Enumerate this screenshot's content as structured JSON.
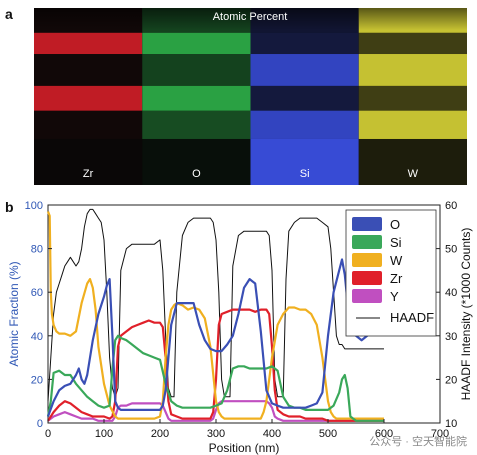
{
  "panel_a_label": "a",
  "panel_b_label": "b",
  "maps": {
    "title": "Atomic Percent",
    "panels": [
      {
        "element": "Zr",
        "color": "#e0202a"
      },
      {
        "element": "O",
        "color": "#2fb34a"
      },
      {
        "element": "Si",
        "color": "#3a4fe0"
      },
      {
        "element": "W",
        "color": "#e6e23a"
      }
    ]
  },
  "watermark": "公众号 · 空天智能院",
  "chart_data": {
    "type": "line",
    "xlabel": "Position (nm)",
    "ylabel": "Atomic Fraction (%)",
    "y2label": "HAADF Intensity (*1000 Counts)",
    "xlim": [
      0,
      700
    ],
    "ylim": [
      0,
      100
    ],
    "y2lim": [
      10,
      60
    ],
    "x_ticks": [
      0,
      100,
      200,
      300,
      400,
      500,
      600,
      700
    ],
    "y_ticks": [
      0,
      20,
      40,
      60,
      80,
      100
    ],
    "y2_ticks": [
      10,
      20,
      30,
      40,
      50,
      60
    ],
    "legend_position": "top-right",
    "colors": {
      "O": "#3a4fb5",
      "Si": "#3aa85a",
      "W": "#f0b020",
      "Zr": "#e0202a",
      "Y": "#c04fc0",
      "HAADF": "#111111"
    },
    "series": [
      {
        "name": "O",
        "axis": "left",
        "x": [
          0,
          10,
          20,
          30,
          40,
          50,
          55,
          60,
          65,
          70,
          80,
          90,
          100,
          105,
          110,
          115,
          120,
          125,
          130,
          140,
          150,
          160,
          170,
          180,
          190,
          200,
          205,
          210,
          215,
          220,
          225,
          230,
          240,
          250,
          260,
          270,
          280,
          290,
          300,
          310,
          320,
          330,
          340,
          350,
          360,
          370,
          380,
          390,
          400,
          410,
          420,
          430,
          440,
          450,
          460,
          470,
          480,
          490,
          500,
          510,
          520,
          525,
          530,
          535,
          540,
          550,
          560,
          570,
          580,
          600
        ],
        "y": [
          3,
          10,
          15,
          17,
          18,
          22,
          25,
          20,
          18,
          22,
          38,
          50,
          58,
          63,
          66,
          40,
          10,
          7,
          6,
          6,
          6,
          6,
          6,
          6,
          6,
          6,
          8,
          15,
          30,
          45,
          50,
          55,
          55,
          55,
          55,
          45,
          38,
          34,
          33,
          33,
          36,
          40,
          50,
          62,
          66,
          64,
          42,
          15,
          9,
          8,
          7,
          7,
          7,
          7,
          7,
          8,
          9,
          14,
          40,
          60,
          70,
          75,
          68,
          55,
          45,
          40,
          38,
          40,
          48,
          60
        ]
      },
      {
        "name": "Si",
        "axis": "left",
        "x": [
          0,
          5,
          10,
          20,
          30,
          40,
          50,
          60,
          70,
          80,
          90,
          100,
          110,
          115,
          120,
          125,
          130,
          140,
          150,
          160,
          170,
          180,
          190,
          200,
          210,
          220,
          230,
          240,
          250,
          260,
          270,
          280,
          290,
          300,
          310,
          320,
          330,
          340,
          350,
          360,
          370,
          380,
          390,
          400,
          410,
          420,
          430,
          440,
          450,
          460,
          470,
          480,
          490,
          500,
          510,
          520,
          525,
          530,
          535,
          540,
          550,
          560,
          570,
          580,
          600
        ],
        "y": [
          3,
          10,
          23,
          24,
          22,
          22,
          18,
          15,
          12,
          10,
          8,
          7,
          8,
          25,
          38,
          40,
          39,
          38,
          36,
          34,
          32,
          31,
          30,
          29,
          18,
          10,
          8,
          7,
          7,
          7,
          7,
          7,
          7,
          8,
          9,
          15,
          25,
          26,
          26,
          25,
          25,
          25,
          25,
          26,
          24,
          12,
          8,
          7,
          7,
          6,
          6,
          6,
          6,
          6,
          8,
          14,
          20,
          22,
          16,
          3,
          1,
          1,
          1,
          1,
          1
        ]
      },
      {
        "name": "W",
        "axis": "left",
        "x": [
          0,
          3,
          5,
          7,
          10,
          15,
          20,
          30,
          40,
          50,
          60,
          70,
          75,
          80,
          85,
          90,
          100,
          110,
          120,
          125,
          130,
          140,
          150,
          160,
          170,
          180,
          190,
          200,
          205,
          210,
          215,
          220,
          225,
          230,
          240,
          250,
          260,
          270,
          280,
          290,
          300,
          305,
          310,
          315,
          320,
          330,
          340,
          350,
          360,
          370,
          380,
          385,
          390,
          400,
          410,
          420,
          430,
          440,
          450,
          460,
          470,
          480,
          490,
          500,
          505,
          510,
          515,
          520,
          525,
          530,
          540,
          550,
          560,
          570,
          580,
          590,
          600
        ],
        "y": [
          97,
          95,
          60,
          50,
          45,
          42,
          41,
          41,
          40,
          42,
          55,
          64,
          66,
          62,
          52,
          35,
          18,
          8,
          3,
          2,
          2,
          2,
          2,
          2,
          2,
          2,
          2,
          3,
          10,
          30,
          45,
          52,
          54,
          55,
          54,
          52,
          53,
          52,
          48,
          35,
          10,
          5,
          3,
          2,
          2,
          2,
          2,
          2,
          2,
          2,
          2,
          5,
          10,
          30,
          45,
          50,
          53,
          53,
          52,
          52,
          50,
          45,
          30,
          10,
          5,
          3,
          2,
          2,
          2,
          2,
          2,
          2,
          2,
          2,
          2,
          2,
          2
        ]
      },
      {
        "name": "Zr",
        "axis": "left",
        "x": [
          0,
          10,
          20,
          30,
          40,
          50,
          60,
          70,
          80,
          90,
          100,
          110,
          115,
          120,
          125,
          130,
          140,
          150,
          160,
          170,
          180,
          190,
          200,
          205,
          210,
          215,
          220,
          230,
          240,
          250,
          260,
          270,
          280,
          290,
          295,
          300,
          305,
          310,
          320,
          330,
          340,
          350,
          360,
          370,
          380,
          390,
          395,
          400,
          405,
          410,
          420,
          430,
          440,
          450,
          460,
          470,
          480,
          490,
          500,
          510,
          520,
          530,
          540,
          550,
          600
        ],
        "y": [
          1,
          5,
          8,
          10,
          9,
          7,
          5,
          4,
          3,
          3,
          3,
          2,
          3,
          10,
          35,
          40,
          42,
          44,
          45,
          46,
          47,
          46,
          46,
          44,
          30,
          10,
          4,
          3,
          2,
          2,
          2,
          2,
          2,
          2,
          5,
          20,
          45,
          50,
          51,
          52,
          52,
          52,
          52,
          51,
          52,
          52,
          50,
          35,
          15,
          6,
          4,
          3,
          3,
          3,
          2,
          2,
          2,
          2,
          1,
          1,
          1,
          1,
          1,
          1,
          1
        ]
      },
      {
        "name": "Y",
        "axis": "left",
        "x": [
          0,
          10,
          20,
          30,
          40,
          50,
          60,
          70,
          80,
          90,
          100,
          110,
          115,
          120,
          125,
          130,
          140,
          150,
          160,
          170,
          180,
          190,
          200,
          205,
          210,
          215,
          220,
          230,
          240,
          250,
          260,
          270,
          280,
          290,
          295,
          300,
          305,
          310,
          320,
          330,
          340,
          350,
          360,
          370,
          380,
          390,
          395,
          400,
          405,
          410,
          420,
          430,
          440,
          450,
          460,
          470,
          480,
          490,
          500,
          510,
          520,
          530,
          540,
          550,
          600
        ],
        "y": [
          1,
          3,
          4,
          5,
          4,
          3,
          2,
          2,
          2,
          1,
          1,
          1,
          1,
          3,
          7,
          8,
          8,
          9,
          9,
          9,
          9,
          9,
          9,
          8,
          5,
          2,
          1,
          1,
          1,
          1,
          1,
          1,
          1,
          1,
          2,
          6,
          9,
          10,
          10,
          10,
          10,
          10,
          10,
          10,
          10,
          10,
          9,
          7,
          3,
          2,
          1,
          1,
          1,
          1,
          1,
          1,
          1,
          1,
          1,
          1,
          1,
          1,
          1,
          1,
          1
        ]
      },
      {
        "name": "HAADF",
        "axis": "right",
        "x": [
          0,
          5,
          10,
          15,
          20,
          25,
          30,
          35,
          40,
          45,
          50,
          55,
          60,
          65,
          70,
          75,
          80,
          85,
          90,
          95,
          100,
          105,
          110,
          115,
          120,
          125,
          130,
          140,
          150,
          160,
          170,
          180,
          190,
          200,
          205,
          210,
          215,
          220,
          225,
          230,
          240,
          250,
          260,
          270,
          280,
          290,
          295,
          300,
          305,
          310,
          315,
          320,
          325,
          330,
          340,
          350,
          360,
          370,
          380,
          390,
          395,
          400,
          405,
          410,
          415,
          420,
          425,
          430,
          440,
          450,
          460,
          470,
          480,
          490,
          500,
          505,
          510,
          515,
          520,
          525,
          530,
          540,
          550,
          560,
          570,
          580,
          600
        ],
        "y": [
          15,
          25,
          35,
          40,
          42,
          44,
          46,
          47,
          48,
          47,
          46,
          47,
          50,
          55,
          58,
          59,
          59,
          58,
          57,
          56,
          52,
          40,
          25,
          18,
          16,
          18,
          45,
          50,
          51,
          51,
          51,
          51,
          51,
          52,
          45,
          30,
          18,
          16,
          16,
          40,
          53,
          56,
          57,
          57,
          57,
          57,
          56,
          52,
          40,
          20,
          16,
          16,
          16,
          46,
          53,
          54,
          54,
          54,
          54,
          54,
          53,
          45,
          20,
          16,
          16,
          16,
          43,
          54,
          56,
          57,
          57,
          57,
          57,
          56,
          55,
          50,
          40,
          30,
          28,
          28,
          27,
          27,
          27,
          27,
          27,
          27,
          27
        ]
      }
    ]
  }
}
